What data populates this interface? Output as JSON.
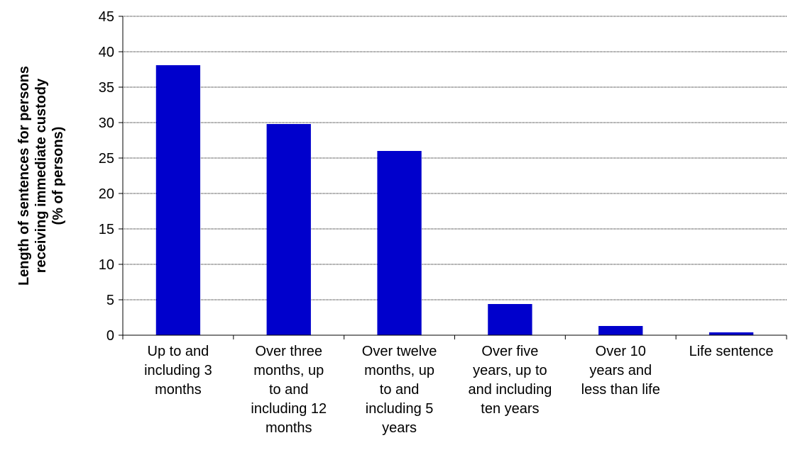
{
  "chart_data": {
    "type": "bar",
    "categories": [
      [
        "Up to and",
        "including 3",
        "months"
      ],
      [
        "Over three",
        "months, up",
        "to and",
        "including 12",
        "months"
      ],
      [
        "Over twelve",
        "months, up",
        "to and",
        "including 5",
        "years"
      ],
      [
        "Over five",
        "years, up to",
        "and including",
        "ten years"
      ],
      [
        "Over 10",
        "years and",
        "less than life"
      ],
      [
        "Life sentence"
      ]
    ],
    "values": [
      38.1,
      29.8,
      26.0,
      4.4,
      1.3,
      0.4
    ],
    "ylabel": [
      "Length of sentences for persons",
      "receiving immediate custody",
      "(% of persons)"
    ],
    "xlabel": "",
    "ylim": [
      0,
      45
    ],
    "yticks": [
      0,
      5,
      10,
      15,
      20,
      25,
      30,
      35,
      40,
      45
    ],
    "grid": true,
    "colors": {
      "bar": "#0000cc",
      "grid": "#000000",
      "axis": "#000000"
    }
  }
}
